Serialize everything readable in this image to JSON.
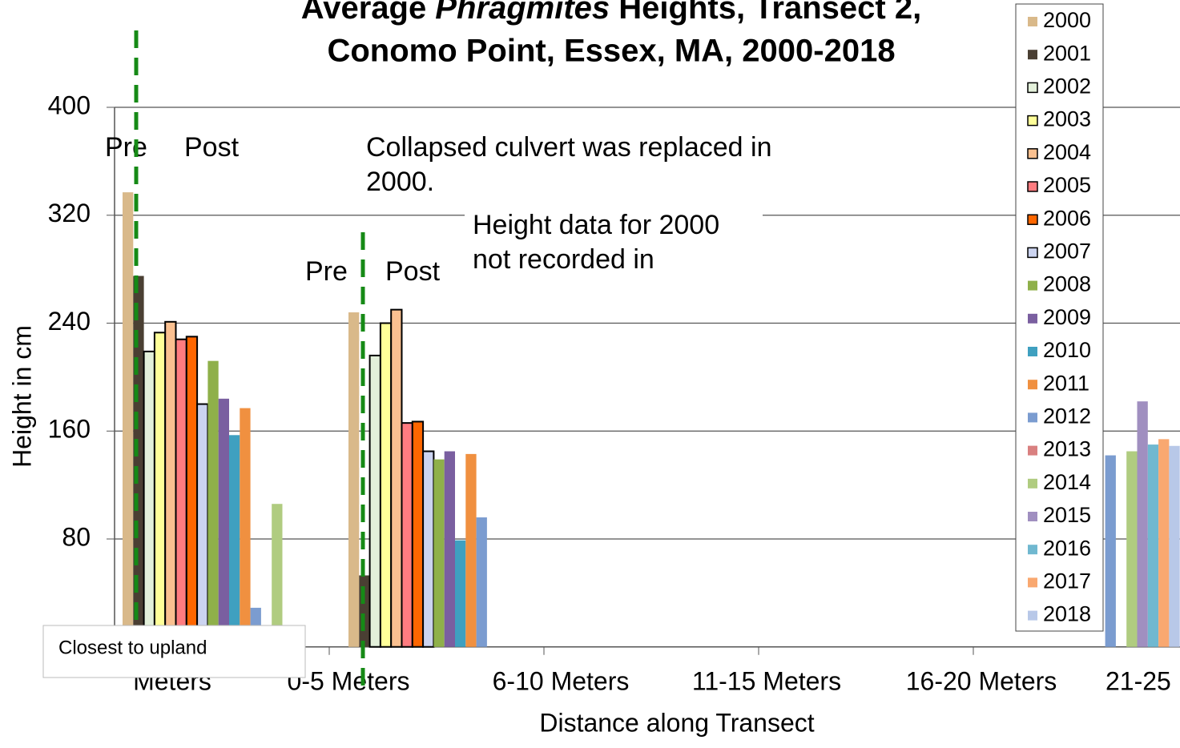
{
  "chart_data": {
    "type": "bar",
    "title": {
      "line1": [
        "Average ",
        "Phragmites",
        " Heights, Transect 2,"
      ],
      "line2": "Conomo Point, Essex, MA, 2000-2018"
    },
    "y_label": "Height in cm",
    "x_label": "Distance along Transect",
    "categories": [
      "Meters",
      "0-5 Meters",
      "6-10 Meters",
      "11-15 Meters",
      "16-20 Meters",
      "21-25"
    ],
    "ylim": [
      0,
      400
    ],
    "yticks": [
      0,
      80,
      160,
      240,
      320,
      400
    ],
    "grid": true,
    "series": [
      {
        "name": "2000",
        "color": "#d9b98a",
        "values": [
          337,
          248,
          null,
          null,
          null,
          null
        ]
      },
      {
        "name": "2001",
        "color": "#4a3f33",
        "values": [
          275,
          53,
          null,
          null,
          null,
          null
        ]
      },
      {
        "name": "2002",
        "color": "#e3f0da",
        "values": [
          219,
          216,
          null,
          null,
          null,
          null
        ]
      },
      {
        "name": "2003",
        "color": "#ffff99",
        "values": [
          233,
          240,
          null,
          null,
          null,
          null
        ]
      },
      {
        "name": "2004",
        "color": "#fac090",
        "values": [
          241,
          250,
          null,
          null,
          null,
          null
        ]
      },
      {
        "name": "2005",
        "color": "#ff7c80",
        "values": [
          228,
          166,
          null,
          null,
          null,
          null
        ]
      },
      {
        "name": "2006",
        "color": "#ff6600",
        "values": [
          230,
          167,
          null,
          null,
          null,
          null
        ]
      },
      {
        "name": "2007",
        "color": "#ccd4f0",
        "values": [
          180,
          145,
          null,
          null,
          null,
          null
        ]
      },
      {
        "name": "2008",
        "color": "#8fb04a",
        "values": [
          212,
          139,
          null,
          null,
          null,
          null
        ]
      },
      {
        "name": "2009",
        "color": "#7a5fa0",
        "values": [
          184,
          145,
          null,
          null,
          null,
          null
        ]
      },
      {
        "name": "2010",
        "color": "#3fa0c0",
        "values": [
          157,
          79,
          null,
          null,
          null,
          null
        ]
      },
      {
        "name": "2011",
        "color": "#f09040",
        "values": [
          177,
          143,
          null,
          null,
          null,
          null
        ]
      },
      {
        "name": "2012",
        "color": "#7b9cd0",
        "values": [
          29,
          96,
          null,
          null,
          null,
          142
        ]
      },
      {
        "name": "2013",
        "color": "#d98080",
        "values": [
          null,
          null,
          null,
          null,
          null,
          null
        ]
      },
      {
        "name": "2014",
        "color": "#b0cc80",
        "values": [
          106,
          null,
          null,
          null,
          null,
          145
        ]
      },
      {
        "name": "2015",
        "color": "#a08fc0",
        "values": [
          null,
          null,
          null,
          null,
          null,
          182
        ]
      },
      {
        "name": "2016",
        "color": "#70b8d0",
        "values": [
          null,
          null,
          null,
          null,
          null,
          150
        ]
      },
      {
        "name": "2017",
        "color": "#f9a870",
        "values": [
          null,
          null,
          null,
          null,
          null,
          154
        ]
      },
      {
        "name": "2018",
        "color": "#b8c8e8",
        "values": [
          null,
          null,
          null,
          null,
          null,
          149
        ]
      }
    ],
    "annotations": [
      "Pre",
      "Post",
      "Collapsed culvert was replaced in",
      "2000.",
      "Height data for 2000",
      "not recorded in",
      "Pre",
      "Post",
      "Closest to upland"
    ]
  }
}
